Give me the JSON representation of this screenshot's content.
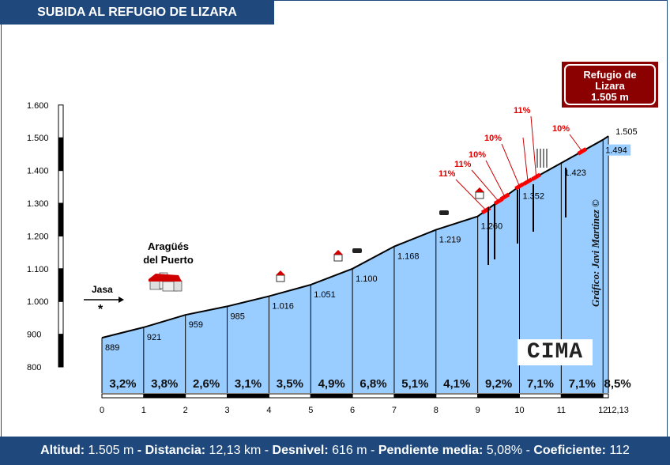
{
  "title": "SUBIDA AL REFUGIO DE LIZARA",
  "summit_box": {
    "line1": "Refugio de",
    "line2": "Lizara",
    "line3": "1.505 m"
  },
  "credit": "Gráfico: Javi Martínez ©",
  "logo": "CIMA",
  "footer": {
    "altitud_label": "Altitud:",
    "altitud": "1.505 m",
    "distancia_label": "Distancia:",
    "distancia": "12,13 km",
    "desnivel_label": "Desnivel:",
    "desnivel": "616 m",
    "pendiente_label": "Pendiente media:",
    "pendiente": "5,08%",
    "coef_label": "Coeficiente:",
    "coef": "112"
  },
  "places": {
    "start_name": "Jasa",
    "start_marker": "*",
    "town_line1": "Aragüés",
    "town_line2": "del Puerto"
  },
  "colors": {
    "fill": "#99ccff",
    "header": "#1f497d",
    "summit": "#8b0000",
    "ramp": "#ff0000"
  },
  "chart_data": {
    "type": "area",
    "ylim": [
      800,
      1600
    ],
    "yticks": [
      "800",
      "900",
      "1.000",
      "1.100",
      "1.200",
      "1.300",
      "1.400",
      "1.500",
      "1.600"
    ],
    "ytick_values": [
      800,
      900,
      1000,
      1100,
      1200,
      1300,
      1400,
      1500,
      1600
    ],
    "xticks": [
      "0",
      "1",
      "2",
      "3",
      "4",
      "5",
      "6",
      "7",
      "8",
      "9",
      "10",
      "11",
      "12",
      "12,13"
    ],
    "xtick_values": [
      0,
      1,
      2,
      3,
      4,
      5,
      6,
      7,
      8,
      9,
      10,
      11,
      12,
      12.13
    ],
    "km": [
      0,
      1,
      2,
      3,
      4,
      5,
      6,
      7,
      8,
      9,
      10,
      11,
      12,
      12.13
    ],
    "elevation": [
      889,
      921,
      959,
      985,
      1016,
      1051,
      1100,
      1168,
      1219,
      1260,
      1352,
      1423,
      1494,
      1505
    ],
    "elevation_labels": [
      "889",
      "921",
      "959",
      "985",
      "1.016",
      "1.051",
      "1.100",
      "1.168",
      "1.219",
      "1.260",
      "1.352",
      "1.423",
      "1.494",
      "1.505"
    ],
    "segment_gradients": [
      "3,2%",
      "3,8%",
      "2,6%",
      "3,1%",
      "3,5%",
      "4,9%",
      "6,8%",
      "5,1%",
      "4,1%",
      "9,2%",
      "7,1%",
      "7,1%",
      "8,5%"
    ],
    "ramps": [
      {
        "label": "11%",
        "km": 9.2
      },
      {
        "label": "11%",
        "km": 9.5
      },
      {
        "label": "10%",
        "km": 9.65
      },
      {
        "label": "10%",
        "km": 10.0
      },
      {
        "label": "10%",
        "km": 10.2
      },
      {
        "label": "11%",
        "km": 10.4
      },
      {
        "label": "10%",
        "km": 11.5
      }
    ]
  }
}
